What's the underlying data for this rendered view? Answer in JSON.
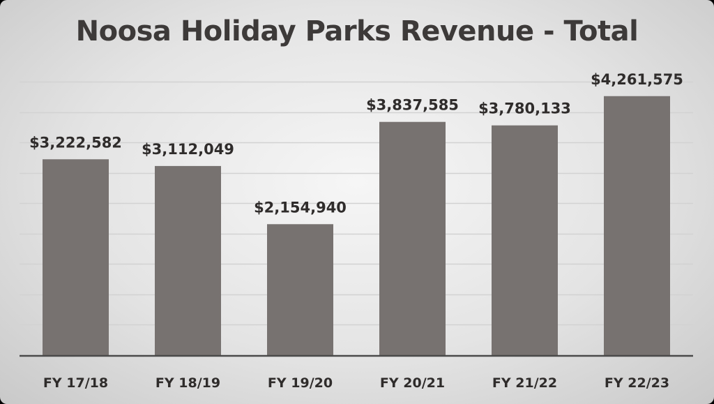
{
  "chart_data": {
    "type": "bar",
    "title": "Noosa Holiday Parks Revenue - Total",
    "xlabel": "",
    "ylabel": "",
    "categories": [
      "FY 17/18",
      "FY 18/19",
      "FY 19/20",
      "FY 20/21",
      "FY 21/22",
      "FY 22/23"
    ],
    "values": [
      3222582,
      3112049,
      2154940,
      3837585,
      3780133,
      4261575
    ],
    "data_labels": [
      "$3,222,582",
      "$3,112,049",
      "$2,154,940",
      "$3,837,585",
      "$3,780,133",
      "$4,261,575"
    ],
    "ylim": [
      0,
      4500000
    ],
    "grid": true,
    "legend": "none",
    "colors": {
      "bar": "#777270",
      "gridline": "#d2d2d2",
      "axis": "#4a4a4a",
      "text": "#2f2c2b",
      "title": "#3d3a39"
    }
  }
}
